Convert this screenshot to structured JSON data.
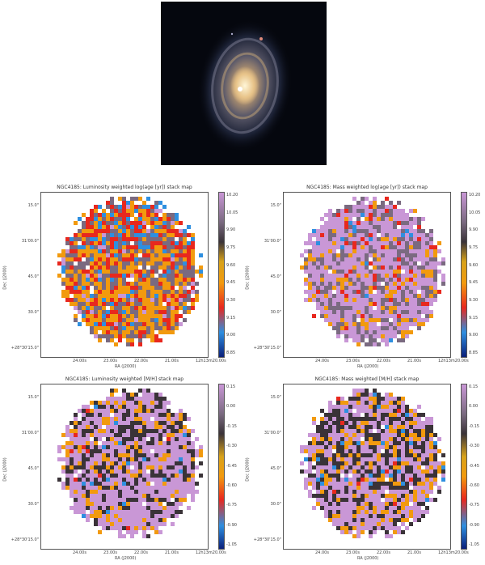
{
  "galaxy_image": {
    "description_icon": "galaxy-photo"
  },
  "panels": [
    {
      "id": "p1",
      "title": "NGC4185: Luminosity weighted log(age [yr]) stack map",
      "xlabel": "RA (J2000)",
      "ylabel": "Dec (J2000)",
      "xticks": [
        "24.00s",
        "23.00s",
        "22.00s",
        "21.00s",
        "12h13m20.00s"
      ],
      "yticks": [
        "15.0\"",
        "31'00.0\"",
        "45.0\"",
        "30.0\"",
        "+28°30'15.0\""
      ],
      "cbar_ticks": [
        "10.20",
        "10.05",
        "9.90",
        "9.75",
        "9.60",
        "9.45",
        "9.30",
        "9.15",
        "9.00",
        "8.85"
      ],
      "colormap": "age",
      "mix": [
        0.05,
        0.25,
        0.32,
        0.25,
        0.13
      ]
    },
    {
      "id": "p2",
      "title": "NGC4185: Mass weighted log(age [yr]) stack map",
      "xlabel": "RA (J2000)",
      "ylabel": "Dec (J2000)",
      "xticks": [
        "24.00s",
        "23.00s",
        "22.00s",
        "21.00s",
        "12h13m20.00s"
      ],
      "yticks": [
        "15.0\"",
        "31'00.0\"",
        "45.0\"",
        "30.0\"",
        "+28°30'15.0\""
      ],
      "cbar_ticks": [
        "10.20",
        "10.05",
        "9.90",
        "9.75",
        "9.60",
        "9.45",
        "9.30",
        "9.15",
        "9.00",
        "8.85"
      ],
      "colormap": "age",
      "mix": [
        0.55,
        0.28,
        0.1,
        0.05,
        0.02
      ]
    },
    {
      "id": "p3",
      "title": "NGC4185: Luminosity weighted [M/H] stack map",
      "xlabel": "RA (J2000)",
      "ylabel": "Dec (J2000)",
      "xticks": [
        "24.00s",
        "23.00s",
        "22.00s",
        "21.00s",
        "12h13m20.00s"
      ],
      "yticks": [
        "15.0\"",
        "31'00.0\"",
        "45.0\"",
        "30.0\"",
        "+28°30'15.0\""
      ],
      "cbar_ticks": [
        "0.15",
        "0.00",
        "-0.15",
        "-0.30",
        "-0.45",
        "-0.60",
        "-0.75",
        "-0.90",
        "-1.05"
      ],
      "colormap": "met",
      "mix": [
        0.55,
        0.25,
        0.17,
        0.02,
        0.01
      ]
    },
    {
      "id": "p4",
      "title": "NGC4185: Mass weighted [M/H] stack map",
      "xlabel": "RA (J2000)",
      "ylabel": "Dec (J2000)",
      "xticks": [
        "24.00s",
        "23.00s",
        "22.00s",
        "21.00s",
        "12h13m20.00s"
      ],
      "yticks": [
        "15.0\"",
        "31'00.0\"",
        "45.0\"",
        "30.0\"",
        "+28°30'15.0\""
      ],
      "cbar_ticks": [
        "0.15",
        "0.00",
        "-0.15",
        "-0.30",
        "-0.45",
        "-0.60",
        "-0.75",
        "-0.90",
        "-1.05"
      ],
      "colormap": "met",
      "mix": [
        0.4,
        0.35,
        0.2,
        0.04,
        0.01
      ]
    }
  ],
  "colors": {
    "pink": "#c997d6",
    "purple_gray": "#7a6a80",
    "dark": "#3a3338",
    "orange": "#f29a0e",
    "gold": "#d8a21a",
    "red": "#e8281e",
    "blue": "#2e8fe0",
    "navy": "#0a1f7a"
  }
}
